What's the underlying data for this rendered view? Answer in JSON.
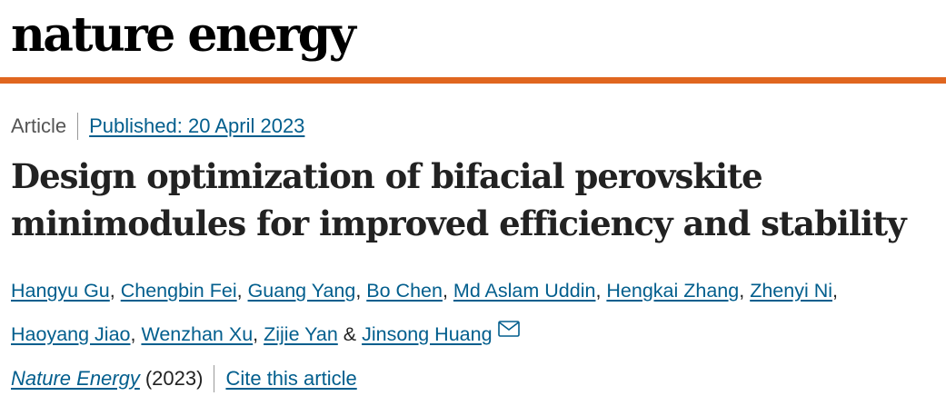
{
  "header": {
    "logo_text": "nature energy"
  },
  "colors": {
    "accent_bar": "#e0661f",
    "link": "#025e8d",
    "text": "#222222"
  },
  "meta": {
    "article_type": "Article",
    "published_label": "Published: 20 April 2023"
  },
  "article": {
    "title": "Design optimization of bifacial perovskite minimodules for improved efficiency and stability"
  },
  "authors": {
    "list": [
      "Hangyu Gu",
      "Chengbin Fei",
      "Guang Yang",
      "Bo Chen",
      "Md Aslam Uddin",
      "Hengkai Zhang",
      "Zhenyi Ni",
      "Haoyang Jiao",
      "Wenzhan Xu",
      "Zijie Yan",
      "Jinsong Huang"
    ],
    "conjunction": "&",
    "corresponding_icon": "mail-icon"
  },
  "journal": {
    "name": "Nature Energy",
    "year": "(2023)",
    "cite_label": "Cite this article"
  }
}
